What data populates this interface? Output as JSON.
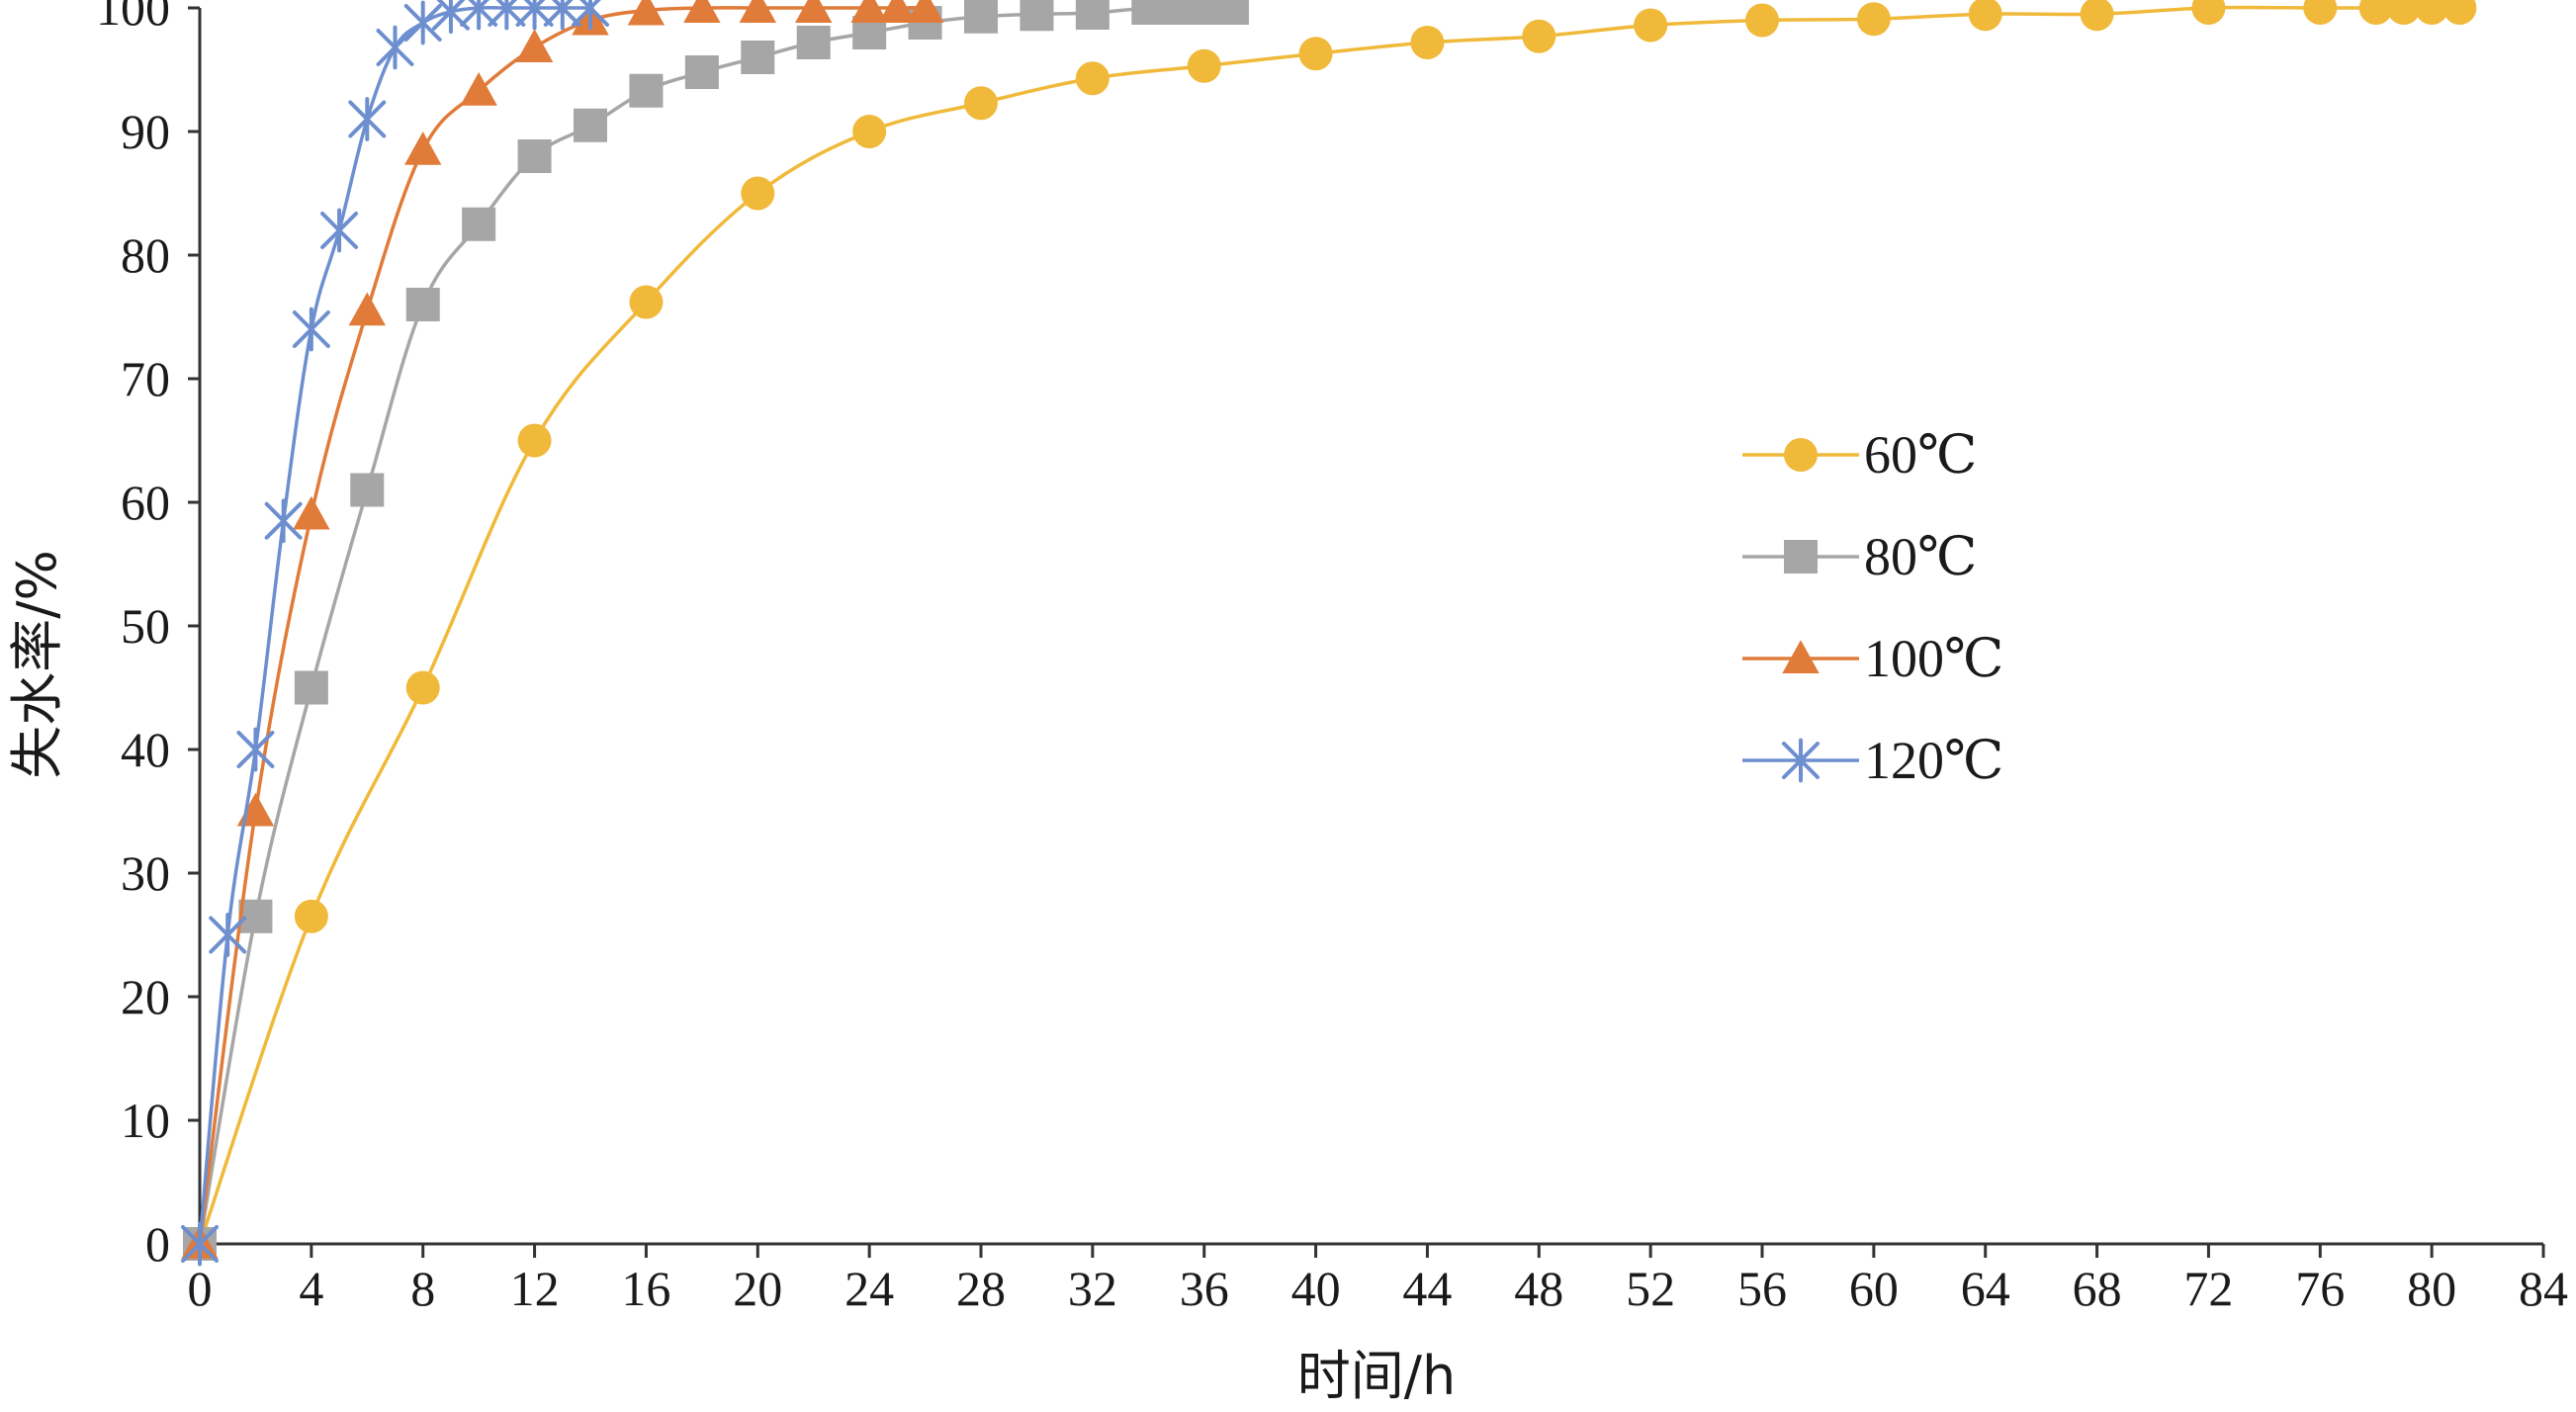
{
  "chart_data": {
    "type": "line",
    "xlabel": "时间/h",
    "ylabel": "失水率/%",
    "xlim": [
      0,
      84
    ],
    "ylim": [
      0,
      100
    ],
    "xticks": [
      "0",
      "4",
      "8",
      "12",
      "16",
      "20",
      "24",
      "28",
      "32",
      "36",
      "40",
      "44",
      "48",
      "52",
      "56",
      "60",
      "64",
      "68",
      "72",
      "76",
      "80",
      "84"
    ],
    "yticks": [
      "0",
      "10",
      "20",
      "30",
      "40",
      "50",
      "60",
      "70",
      "80",
      "90",
      "100"
    ],
    "grid": false,
    "legend_position": "right",
    "series": [
      {
        "name": "60℃",
        "color": "#F0B93A",
        "marker": "circle",
        "x": [
          0,
          4,
          8,
          12,
          16,
          20,
          24,
          28,
          32,
          36,
          40,
          44,
          48,
          52,
          56,
          60,
          64,
          68,
          72,
          76,
          78,
          79,
          80,
          81
        ],
        "y": [
          0,
          26.5,
          45,
          65,
          76.2,
          85,
          90,
          92.3,
          94.3,
          95.3,
          96.3,
          97.2,
          97.7,
          98.6,
          99.0,
          99.1,
          99.5,
          99.5,
          100,
          100,
          100,
          100,
          100,
          100
        ]
      },
      {
        "name": "80℃",
        "color": "#A6A6A6",
        "marker": "square",
        "x": [
          0,
          2,
          4,
          6,
          8,
          10,
          12,
          14,
          16,
          18,
          20,
          22,
          24,
          26,
          28,
          30,
          32,
          34,
          35,
          36,
          37
        ],
        "y": [
          0,
          26.5,
          45,
          61,
          76,
          82.5,
          88,
          90.5,
          93.3,
          94.8,
          96,
          97.2,
          98,
          98.8,
          99.3,
          99.5,
          99.6,
          100,
          100,
          100,
          100
        ]
      },
      {
        "name": "100℃",
        "color": "#E07B39",
        "marker": "triangle",
        "x": [
          0,
          2,
          4,
          6,
          8,
          10,
          12,
          14,
          16,
          18,
          20,
          22,
          24,
          25,
          26
        ],
        "y": [
          0,
          35,
          59,
          75.5,
          88.5,
          93.3,
          96.8,
          99,
          99.8,
          100,
          100,
          100,
          100,
          100,
          100
        ]
      },
      {
        "name": "120℃",
        "color": "#6E8FCF",
        "marker": "asterisk",
        "x": [
          0,
          1,
          2,
          3,
          4,
          5,
          6,
          7,
          8,
          9,
          10,
          11,
          12,
          13,
          14
        ],
        "y": [
          0,
          25,
          40,
          58.5,
          74,
          82,
          91,
          96.8,
          98.8,
          99.7,
          100,
          100,
          100,
          100,
          100
        ]
      }
    ]
  }
}
